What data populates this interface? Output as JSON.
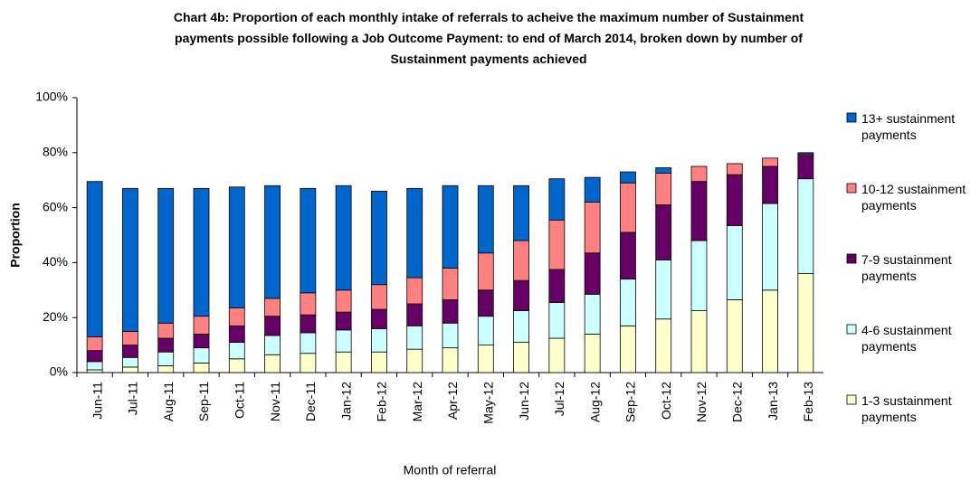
{
  "chart_data": {
    "type": "stacked_bar",
    "title": "Chart 4b: Proportion of each monthly intake of referrals to acheive the maximum number of Sustainment payments possible  following a Job Outcome Payment: to end of March 2014, broken down by number of Sustainment payments achieved",
    "x_label": "Month of referral",
    "y_label": "Proportion",
    "categories": [
      "Jun-11",
      "Jul-11",
      "Aug-11",
      "Sep-11",
      "Oct-11",
      "Nov-11",
      "Dec-11",
      "Jan-12",
      "Feb-12",
      "Mar-12",
      "Apr-12",
      "May-12",
      "Jun-12",
      "Jul-12",
      "Aug-12",
      "Sep-12",
      "Oct-12",
      "Nov-12",
      "Dec-12",
      "Jan-13",
      "Feb-13"
    ],
    "series": [
      {
        "name": "1-3 sustainment payments",
        "color": "#ffffcc",
        "values": [
          1,
          2,
          2.5,
          3.5,
          5,
          6.5,
          7,
          7.5,
          7.5,
          8.5,
          9,
          10,
          11,
          12.5,
          14,
          17,
          19.5,
          22.5,
          26.5,
          30,
          36
        ]
      },
      {
        "name": "4-6 sustainment payments",
        "color": "#ccffff",
        "values": [
          3,
          3.5,
          5,
          5.5,
          6,
          7,
          7.5,
          8,
          8.5,
          8.5,
          9,
          10.5,
          11.5,
          13,
          14.5,
          17,
          21.5,
          25.5,
          27,
          31.5,
          34.5
        ]
      },
      {
        "name": "7-9 sustainment payments",
        "color": "#660066",
        "values": [
          4,
          4.5,
          5,
          5,
          6,
          7,
          6.5,
          6.5,
          7,
          8,
          8.5,
          9.5,
          11,
          12,
          15,
          17,
          20,
          21.5,
          18.5,
          13.5,
          8.5
        ]
      },
      {
        "name": "10-12 sustainment payments",
        "color": "#ff8080",
        "values": [
          5,
          5,
          5.5,
          6.5,
          6.5,
          6.5,
          8,
          8,
          9,
          9.5,
          11.5,
          13.5,
          14.5,
          18,
          18.5,
          18,
          11.5,
          5.5,
          4,
          3,
          0.5
        ]
      },
      {
        "name": "13+ sustainment payments",
        "color": "#0066cc",
        "values": [
          56.5,
          52,
          49,
          46.5,
          44,
          41,
          38,
          38,
          34,
          32.5,
          30,
          24.5,
          20,
          15,
          9,
          4,
          2,
          0,
          0,
          0,
          0.5
        ]
      }
    ],
    "ylim": [
      0,
      100
    ],
    "yticks": [
      {
        "value": 0,
        "label": "0%"
      },
      {
        "value": 20,
        "label": "20%"
      },
      {
        "value": 40,
        "label": "40%"
      },
      {
        "value": 60,
        "label": "60%"
      },
      {
        "value": 80,
        "label": "80%"
      },
      {
        "value": 100,
        "label": "100%"
      }
    ],
    "legend": "right"
  }
}
